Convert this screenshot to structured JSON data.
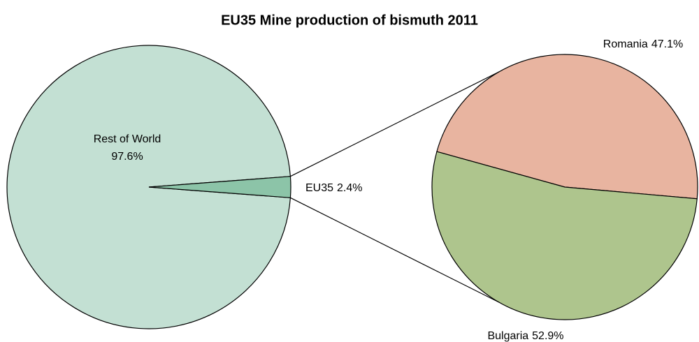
{
  "chart_data": [
    {
      "type": "pie",
      "title": "EU35 Mine production of bismuth 2011",
      "categories": [
        "Rest of World",
        "EU35"
      ],
      "values": [
        97.6,
        2.4
      ],
      "value_labels": [
        "97.6%",
        "2.4%"
      ],
      "colors": [
        "#c3e0d3",
        "#8cc4a8"
      ]
    },
    {
      "type": "pie",
      "categories": [
        "Romania",
        "Bulgaria"
      ],
      "values": [
        47.1,
        52.9
      ],
      "value_labels": [
        "47.1%",
        "52.9%"
      ],
      "colors": [
        "#e8b4a0",
        "#aec58d"
      ]
    }
  ]
}
